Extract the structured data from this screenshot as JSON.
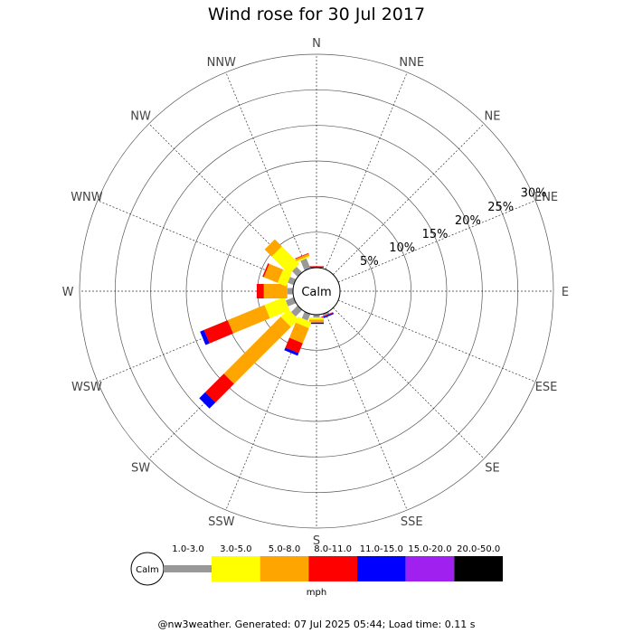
{
  "chart_data": {
    "type": "wind-rose",
    "title": "Wind rose for 30 Jul 2017",
    "directions": [
      "N",
      "NNE",
      "NE",
      "ENE",
      "E",
      "ESE",
      "SE",
      "SSE",
      "S",
      "SSW",
      "SW",
      "WSW",
      "W",
      "WNW",
      "NW",
      "NNW"
    ],
    "radial_ticks": [
      "5%",
      "10%",
      "15%",
      "20%",
      "25%",
      "30%"
    ],
    "radial_max": 30,
    "calm_label": "Calm",
    "unit": "mph",
    "speed_bins": [
      {
        "label": "",
        "color": "#999999"
      },
      {
        "label": "1.0-3.0",
        "color": "#ffff00"
      },
      {
        "label": "3.0-5.0",
        "color": "#ffa500"
      },
      {
        "label": "5.0-8.0",
        "color": "#ff0000"
      },
      {
        "label": "8.0-11.0",
        "color": "#0000ff"
      },
      {
        "label": "11.0-15.0",
        "color": "#a020f0"
      },
      {
        "label": "15.0-20.0",
        "color": "#000000"
      },
      {
        "label": "20.0-50.0",
        "color": "#000000"
      }
    ],
    "series": [
      {
        "direction": "N",
        "values": [
          0,
          0,
          0,
          0.2,
          0,
          0,
          0,
          0
        ]
      },
      {
        "direction": "NNE",
        "values": [
          0,
          0,
          0,
          0,
          0,
          0,
          0,
          0
        ]
      },
      {
        "direction": "NE",
        "values": [
          0,
          0,
          0,
          0,
          0,
          0,
          0,
          0
        ]
      },
      {
        "direction": "ENE",
        "values": [
          0,
          0,
          0,
          0,
          0,
          0,
          0,
          0
        ]
      },
      {
        "direction": "E",
        "values": [
          0,
          0,
          0,
          0,
          0,
          0,
          0,
          0
        ]
      },
      {
        "direction": "ESE",
        "values": [
          0,
          0,
          0,
          0,
          0,
          0,
          0,
          0
        ]
      },
      {
        "direction": "SE",
        "values": [
          0,
          0,
          0,
          0,
          0,
          0,
          0,
          0
        ]
      },
      {
        "direction": "SSE",
        "values": [
          0.3,
          0,
          0,
          0.1,
          0.2,
          0,
          0,
          0
        ]
      },
      {
        "direction": "S",
        "values": [
          0.4,
          0.3,
          0.4,
          0,
          0.2,
          0,
          0,
          0
        ]
      },
      {
        "direction": "SSW",
        "values": [
          1.0,
          0.9,
          2.3,
          1.5,
          0.4,
          0,
          0,
          0
        ]
      },
      {
        "direction": "SW",
        "values": [
          1.3,
          1.5,
          11.3,
          3.7,
          1.2,
          0,
          0,
          0
        ]
      },
      {
        "direction": "WSW",
        "values": [
          1.2,
          3.0,
          5.6,
          3.6,
          0.6,
          0,
          0,
          0
        ]
      },
      {
        "direction": "W",
        "values": [
          0.8,
          0,
          3.3,
          1.0,
          0,
          0,
          0,
          0
        ]
      },
      {
        "direction": "WNW",
        "values": [
          0.9,
          1.3,
          2.1,
          0.2,
          0,
          0,
          0,
          0
        ]
      },
      {
        "direction": "NW",
        "values": [
          1.1,
          3.5,
          1.4,
          0,
          0,
          0,
          0,
          0
        ]
      },
      {
        "direction": "NNW",
        "values": [
          1.5,
          0.2,
          0.3,
          0.1,
          0,
          0,
          0,
          0
        ]
      }
    ]
  },
  "footer": "@nw3weather. Generated: 07 Jul 2025 05:44; Load time: 0.11 s"
}
